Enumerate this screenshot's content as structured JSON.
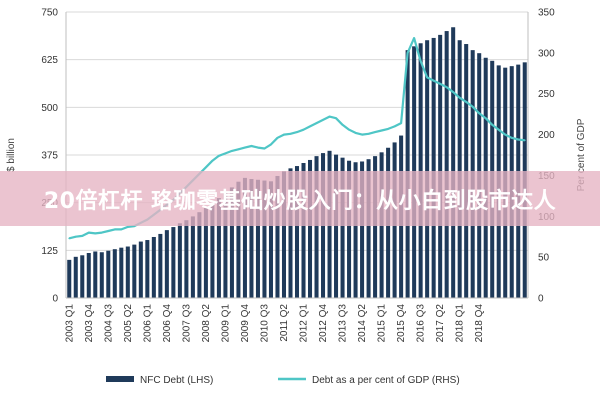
{
  "overlay_text": "20倍杠杆 珞珈零基础炒股入门：从小白到股市达人",
  "chart_data": {
    "type": "bar+line",
    "title": "",
    "ylabel_left": "$ billion",
    "ylabel_right": "Per cent of GDP",
    "ylim_left": [
      0,
      750
    ],
    "ylim_right": [
      0,
      350
    ],
    "yticks_left": [
      0,
      125,
      250,
      375,
      500,
      625,
      750
    ],
    "yticks_right": [
      0,
      50,
      100,
      150,
      200,
      250,
      300,
      350
    ],
    "x_tick_labels": [
      "2003 Q1",
      "2003 Q4",
      "2004 Q3",
      "2005 Q2",
      "2006 Q1",
      "2006 Q4",
      "2007 Q3",
      "2008 Q2",
      "2009 Q1",
      "2009 Q4",
      "2010 Q3",
      "2011 Q2",
      "2012 Q1",
      "2012 Q4",
      "2013 Q3",
      "2014 Q2",
      "2015 Q1",
      "2015 Q4",
      "2016 Q3",
      "2017 Q2",
      "2018 Q1",
      "2018 Q4"
    ],
    "legend_position": "bottom",
    "colors": {
      "bars": "#1f3a5a",
      "line": "#4fc6c6",
      "grid": "#d9d9d9"
    },
    "series": [
      {
        "name": "NFC Debt (LHS)",
        "type": "bar",
        "axis": "left",
        "values": [
          100,
          108,
          112,
          118,
          122,
          120,
          124,
          128,
          132,
          135,
          140,
          148,
          152,
          160,
          168,
          178,
          186,
          196,
          204,
          214,
          225,
          236,
          248,
          262,
          276,
          290,
          305,
          315,
          312,
          310,
          308,
          306,
          320,
          332,
          340,
          346,
          354,
          362,
          372,
          380,
          386,
          376,
          368,
          360,
          356,
          358,
          364,
          372,
          382,
          394,
          408,
          426,
          650,
          660,
          668,
          676,
          682,
          690,
          700,
          710,
          676,
          666,
          650,
          642,
          630,
          622,
          610,
          604,
          608,
          612,
          618
        ]
      },
      {
        "name": "Debt as a per cent of GDP (RHS)",
        "type": "line",
        "axis": "right",
        "values": [
          73,
          75,
          76,
          80,
          79,
          80,
          82,
          84,
          84,
          87,
          88,
          92,
          96,
          102,
          108,
          114,
          120,
          128,
          136,
          144,
          152,
          160,
          168,
          174,
          177,
          180,
          182,
          184,
          186,
          184,
          183,
          188,
          196,
          200,
          201,
          203,
          206,
          210,
          214,
          218,
          222,
          220,
          212,
          206,
          202,
          200,
          201,
          203,
          205,
          207,
          210,
          214,
          300,
          318,
          290,
          270,
          266,
          262,
          258,
          252,
          245,
          240,
          234,
          226,
          220,
          212,
          206,
          200,
          196,
          194,
          193
        ]
      }
    ]
  }
}
